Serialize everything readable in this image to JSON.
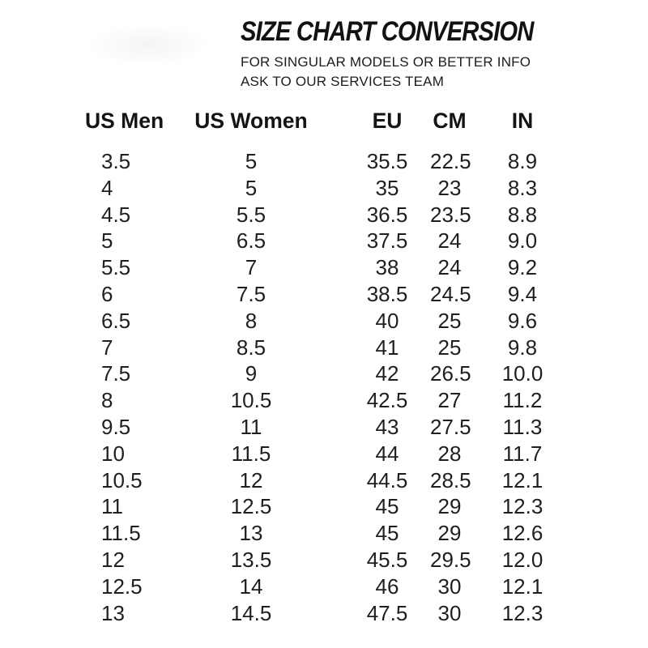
{
  "header": {
    "title": "SIZE CHART CONVERSION",
    "subtitle_line1": "FOR SINGULAR MODELS OR BETTER INFO",
    "subtitle_line2": "ASK TO OUR SERVICES TEAM"
  },
  "colors": {
    "background": "#ffffff",
    "text": "#1b1b1b"
  },
  "chart_data": {
    "type": "table",
    "title": "SIZE CHART CONVERSION",
    "columns": [
      "US Men",
      "US Women",
      "EU",
      "CM",
      "IN"
    ],
    "column_keys": [
      "us-men",
      "us-women",
      "eu",
      "cm",
      "in"
    ],
    "rows": [
      [
        "3.5",
        "5",
        "35.5",
        "22.5",
        "8.9"
      ],
      [
        "4",
        "5",
        "35",
        "23",
        "8.3"
      ],
      [
        "4.5",
        "5.5",
        "36.5",
        "23.5",
        "8.8"
      ],
      [
        "5",
        "6.5",
        "37.5",
        "24",
        "9.0"
      ],
      [
        "5.5",
        "7",
        "38",
        "24",
        "9.2"
      ],
      [
        "6",
        "7.5",
        "38.5",
        "24.5",
        "9.4"
      ],
      [
        "6.5",
        "8",
        "40",
        "25",
        "9.6"
      ],
      [
        "7",
        "8.5",
        "41",
        "25",
        "9.8"
      ],
      [
        "7.5",
        "9",
        "42",
        "26.5",
        "10.0"
      ],
      [
        "8",
        "10.5",
        "42.5",
        "27",
        "11.2"
      ],
      [
        "9.5",
        "11",
        "43",
        "27.5",
        "11.3"
      ],
      [
        "10",
        "11.5",
        "44",
        "28",
        "11.7"
      ],
      [
        "10.5",
        "12",
        "44.5",
        "28.5",
        "12.1"
      ],
      [
        "11",
        "12.5",
        "45",
        "29",
        "12.3"
      ],
      [
        "11.5",
        "13",
        "45",
        "29",
        "12.6"
      ],
      [
        "12",
        "13.5",
        "45.5",
        "29.5",
        "12.0"
      ],
      [
        "12.5",
        "14",
        "46",
        "30",
        "12.1"
      ],
      [
        "13",
        "14.5",
        "47.5",
        "30",
        "12.3"
      ]
    ]
  }
}
